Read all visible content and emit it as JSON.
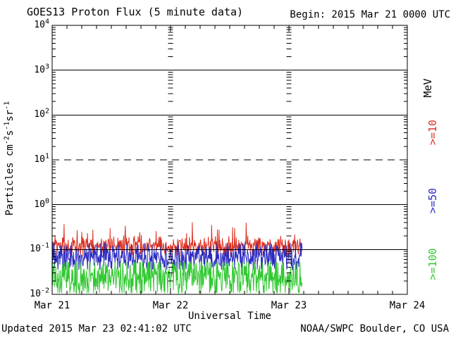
{
  "header": {
    "title": "GOES13 Proton Flux (5 minute data)",
    "begin": "Begin: 2015 Mar 21 0000 UTC"
  },
  "footer": {
    "updated": "Updated 2015 Mar 23 02:41:02 UTC",
    "source": "NOAA/SWPC Boulder, CO USA"
  },
  "chart_data": {
    "type": "line",
    "title": "GOES13 Proton Flux (5 minute data)",
    "xlabel": "Universal Time",
    "ylabel_segments": [
      {
        "text": "Particles cm"
      },
      {
        "sup": "-2"
      },
      {
        "text": "s"
      },
      {
        "sup": "-1"
      },
      {
        "text": "sr"
      },
      {
        "sup": "-1"
      }
    ],
    "unit_label": "MeV",
    "x_ticks": [
      "Mar 21",
      "Mar 22",
      "Mar 23",
      "Mar 24"
    ],
    "x_days_total": 3,
    "x_minor_tick_hours": 3,
    "y_scale": "log",
    "y_tick_base": "10",
    "y_tick_exponents": [
      4,
      3,
      2,
      1,
      0,
      -1,
      -2
    ],
    "ylim": [
      0.01,
      10000
    ],
    "grid": {
      "solid_gridline_exponents": [
        3,
        2,
        0,
        -1
      ],
      "dashed_gridline_exponents": [
        1
      ],
      "interior_minor_tick_days": [
        1,
        2
      ]
    },
    "data_start": "2015 Mar 21 0000 UTC",
    "data_end": "2015 Mar 23 02:41 UTC",
    "data_hours": 50.68,
    "cadence_minutes": 5,
    "noise_seed": 20150323,
    "series": [
      {
        "label": ">=10",
        "color": "#dd3020",
        "typical_flux": 0.12,
        "flux_min": 0.07,
        "flux_max": 0.42,
        "log_center": -0.93,
        "log_jitter": 0.13,
        "spike_prob": 0.035,
        "spike_log_max": -0.38,
        "log_min": -1.15
      },
      {
        "label": ">=50",
        "color": "#2b2bc0",
        "typical_flux": 0.065,
        "flux_min": 0.035,
        "flux_max": 0.14,
        "log_center": -1.17,
        "log_jitter": 0.19,
        "spike_prob": 0.015,
        "spike_log_max": -0.85,
        "log_min": -1.45
      },
      {
        "label": ">=100",
        "color": "#30c830",
        "typical_flux": 0.022,
        "flux_min": 0.011,
        "flux_max": 0.052,
        "log_center": -1.62,
        "log_jitter": 0.3,
        "spike_prob": 0.01,
        "spike_log_max": -1.28,
        "log_min": -1.97
      }
    ]
  }
}
